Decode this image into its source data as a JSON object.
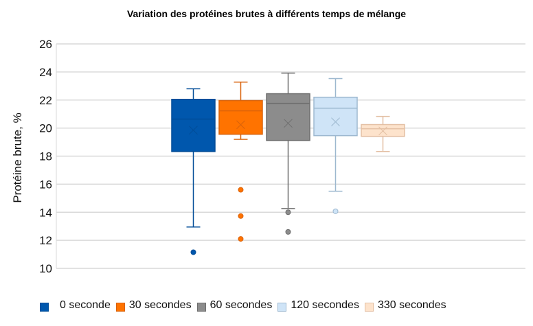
{
  "chart_data": {
    "type": "boxplot",
    "title": "Variation des protéines brutes à différents temps de mélange",
    "xlabel": "",
    "ylabel": "Protéine brute, %",
    "ylim": [
      10,
      26
    ],
    "yticks": [
      10,
      12,
      14,
      16,
      18,
      20,
      22,
      24,
      26
    ],
    "grid": true,
    "legend_position": "bottom",
    "series": [
      {
        "name": "0 seconde",
        "color": "#0057AD",
        "stroke": "#004C97",
        "whisker_low": 12.95,
        "q1": 18.33,
        "median": 20.64,
        "q3": 22.05,
        "whisker_high": 22.8,
        "mean": 19.85,
        "outliers": [
          11.15
        ]
      },
      {
        "name": "30 secondes",
        "color": "#FF7300",
        "stroke": "#D9620A",
        "whisker_low": 19.2,
        "q1": 19.56,
        "median": 21.23,
        "q3": 21.96,
        "whisker_high": 23.28,
        "mean": 20.24,
        "outliers": [
          15.6,
          13.73,
          12.1
        ]
      },
      {
        "name": "60 secondes",
        "color": "#8C8C8C",
        "stroke": "#6E6E6E",
        "whisker_low": 14.26,
        "q1": 19.12,
        "median": 21.76,
        "q3": 22.45,
        "whisker_high": 23.92,
        "mean": 20.34,
        "outliers": [
          14.0,
          12.6
        ]
      },
      {
        "name": "120 secondes",
        "color": "#CFE4F7",
        "stroke": "#9DB8CF",
        "whisker_low": 15.5,
        "q1": 19.46,
        "median": 21.42,
        "q3": 22.2,
        "whisker_high": 23.53,
        "mean": 20.44,
        "outliers": [
          14.07
        ]
      },
      {
        "name": "330 secondes",
        "color": "#FDE3CC",
        "stroke": "#E3BFA3",
        "whisker_low": 18.33,
        "q1": 19.41,
        "median": 19.95,
        "q3": 20.25,
        "whisker_high": 20.83,
        "mean": 19.8,
        "outliers": []
      }
    ]
  }
}
